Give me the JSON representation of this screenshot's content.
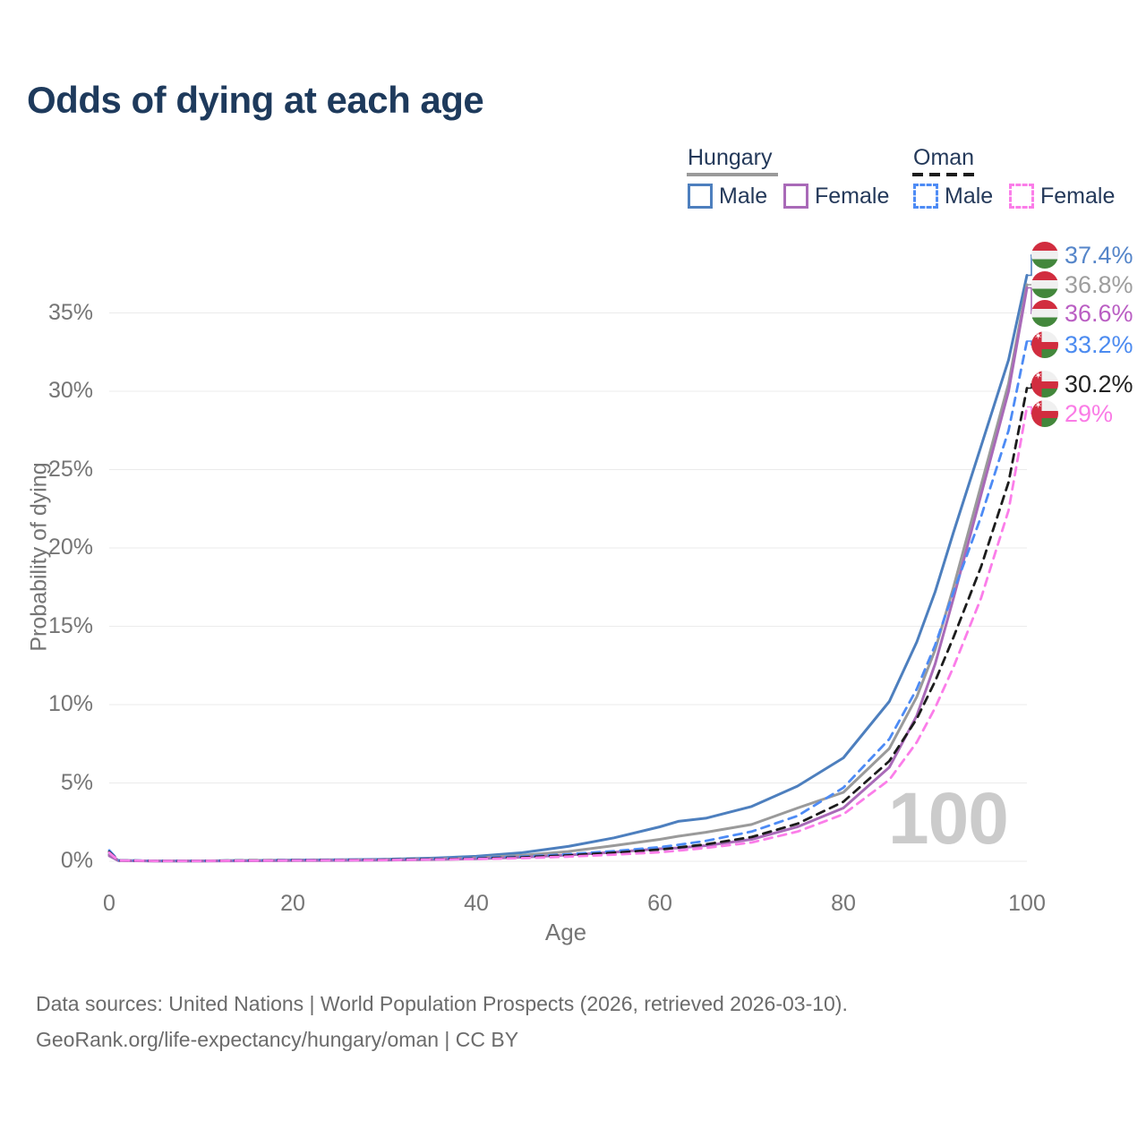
{
  "title": "Odds of dying at each age",
  "legend": {
    "hungary_label": "Hungary",
    "oman_label": "Oman",
    "hungary_male_label": "Male",
    "hungary_female_label": "Female",
    "oman_male_label": "Male",
    "oman_female_label": "Female"
  },
  "chart_data": {
    "type": "line",
    "title": "Odds of dying at each age",
    "xlabel": "Age",
    "ylabel": "Probability of dying",
    "xlim": [
      0,
      100
    ],
    "ylim_percent": [
      0,
      39
    ],
    "x_ticks": [
      0,
      20,
      40,
      60,
      80,
      100
    ],
    "y_ticks_percent": [
      0,
      5,
      10,
      15,
      20,
      25,
      30,
      35
    ],
    "grid": true,
    "legend_position": "top-right",
    "watermark": "100",
    "x": [
      0,
      1,
      5,
      10,
      15,
      20,
      25,
      30,
      35,
      40,
      45,
      50,
      55,
      60,
      62,
      65,
      70,
      75,
      80,
      85,
      88,
      90,
      92,
      95,
      98,
      100
    ],
    "series": [
      {
        "name": "Hungary Male",
        "country": "Hungary",
        "line": "solid",
        "color": "#4d7fbe",
        "end_label": "37.4%",
        "label_color": "#5585c9",
        "values": [
          0.45,
          0.05,
          0.02,
          0.02,
          0.05,
          0.08,
          0.1,
          0.13,
          0.2,
          0.32,
          0.55,
          0.95,
          1.5,
          2.2,
          2.55,
          2.75,
          3.5,
          4.8,
          6.6,
          10.2,
          14.0,
          17.2,
          21.0,
          26.5,
          32.0,
          37.4
        ]
      },
      {
        "name": "Hungary",
        "country": "Hungary",
        "line": "solid",
        "color": "#9a9a9a",
        "end_label": "36.8%",
        "label_color": "#9e9e9e",
        "values": [
          0.4,
          0.04,
          0.02,
          0.02,
          0.04,
          0.06,
          0.08,
          0.1,
          0.15,
          0.22,
          0.38,
          0.62,
          1.0,
          1.4,
          1.6,
          1.85,
          2.35,
          3.4,
          4.4,
          7.2,
          10.5,
          13.5,
          17.5,
          24.0,
          30.5,
          36.8
        ]
      },
      {
        "name": "Hungary Female",
        "country": "Hungary",
        "line": "solid",
        "color": "#a96ab8",
        "end_label": "36.6%",
        "label_color": "#ba5ec3",
        "values": [
          0.35,
          0.04,
          0.01,
          0.01,
          0.03,
          0.04,
          0.05,
          0.07,
          0.11,
          0.16,
          0.26,
          0.4,
          0.58,
          0.8,
          0.85,
          1.0,
          1.4,
          2.2,
          3.4,
          6.0,
          9.3,
          12.6,
          16.8,
          23.4,
          30.0,
          36.6
        ]
      },
      {
        "name": "Oman Male",
        "country": "Oman",
        "line": "dashed",
        "color": "#4d8bf5",
        "end_label": "33.2%",
        "label_color": "#4c8bf0",
        "values": [
          0.7,
          0.06,
          0.03,
          0.03,
          0.05,
          0.08,
          0.09,
          0.11,
          0.15,
          0.22,
          0.3,
          0.45,
          0.65,
          0.9,
          1.05,
          1.3,
          1.9,
          2.9,
          4.7,
          7.8,
          11.0,
          13.8,
          17.2,
          22.0,
          27.5,
          33.2
        ]
      },
      {
        "name": "Oman",
        "country": "Oman",
        "line": "dashed",
        "color": "#1c1c1c",
        "end_label": "30.2%",
        "label_color": "#222222",
        "values": [
          0.6,
          0.05,
          0.02,
          0.02,
          0.05,
          0.07,
          0.08,
          0.1,
          0.13,
          0.18,
          0.25,
          0.38,
          0.55,
          0.75,
          0.88,
          1.08,
          1.55,
          2.4,
          3.8,
          6.4,
          9.1,
          11.5,
          14.3,
          18.8,
          24.2,
          30.2
        ]
      },
      {
        "name": "Oman Female",
        "country": "Oman",
        "line": "dashed",
        "color": "#fb7de9",
        "end_label": "29%",
        "label_color": "#fa7ce6",
        "values": [
          0.55,
          0.05,
          0.02,
          0.02,
          0.04,
          0.06,
          0.07,
          0.08,
          0.11,
          0.14,
          0.2,
          0.3,
          0.42,
          0.58,
          0.68,
          0.85,
          1.2,
          1.9,
          3.0,
          5.2,
          7.6,
          9.8,
          12.4,
          16.8,
          22.4,
          29.0
        ]
      }
    ]
  },
  "footer": {
    "line1": "Data sources: United Nations | World Population Prospects (2026, retrieved 2026-03-10).",
    "line2": "GeoRank.org/life-expectancy/hungary/oman | CC BY"
  }
}
